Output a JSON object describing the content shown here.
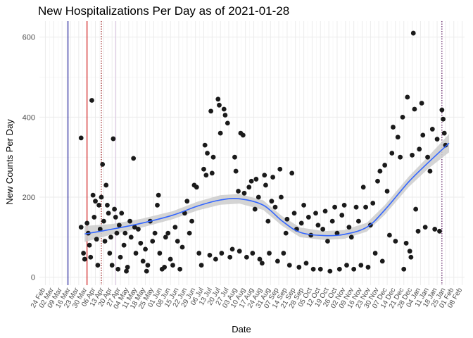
{
  "chart_data": {
    "type": "scatter",
    "title": "New Hospitalizations Per Day as of 2021-01-28",
    "xlabel": "Date",
    "ylabel": "New Counts Per Day",
    "ylim": [
      -20,
      640
    ],
    "yticks": [
      0,
      200,
      400,
      600
    ],
    "xlim": [
      "2020-02-19",
      "2021-02-10"
    ],
    "xticks": [
      "24 Feb",
      "02 Mar",
      "09 Mar",
      "16 Mar",
      "23 Mar",
      "30 Mar",
      "06 Apr",
      "13 Apr",
      "20 Apr",
      "27 Apr",
      "04 May",
      "11 May",
      "18 May",
      "25 May",
      "01 Jun",
      "08 Jun",
      "15 Jun",
      "22 Jun",
      "29 Jun",
      "06 Jul",
      "13 Jul",
      "20 Jul",
      "27 Jul",
      "03 Aug",
      "10 Aug",
      "17 Aug",
      "24 Aug",
      "31 Aug",
      "07 Sep",
      "14 Sep",
      "21 Sep",
      "28 Sep",
      "05 Oct",
      "12 Oct",
      "19 Oct",
      "26 Oct",
      "02 Nov",
      "09 Nov",
      "16 Nov",
      "23 Nov",
      "30 Nov",
      "07 Dec",
      "14 Dec",
      "21 Dec",
      "28 Dec",
      "04 Jan",
      "11 Jan",
      "18 Jan",
      "25 Jan",
      "01 Feb",
      "08 Feb"
    ],
    "grid": true,
    "point_color": "#1a1a1a",
    "smooth_color": "#3366ff",
    "ribbon_color": "#cccccc",
    "vlines": [
      {
        "date": "2020-03-14",
        "color": "#00008b",
        "style": "solid"
      },
      {
        "date": "2020-03-30",
        "color": "#cc0000",
        "style": "solid"
      },
      {
        "date": "2020-04-11",
        "color": "#8b0000",
        "style": "dotted"
      },
      {
        "date": "2020-04-23",
        "color": "#d8c4e0",
        "style": "solid"
      },
      {
        "date": "2021-01-22",
        "color": "#4b0050",
        "style": "dotted"
      }
    ],
    "smooth": [
      {
        "x": "2020-03-28",
        "y": 108,
        "lo": 88,
        "hi": 128
      },
      {
        "x": "2020-04-20",
        "y": 120,
        "lo": 107,
        "hi": 133
      },
      {
        "x": "2020-05-15",
        "y": 135,
        "lo": 124,
        "hi": 146
      },
      {
        "x": "2020-06-10",
        "y": 155,
        "lo": 145,
        "hi": 165
      },
      {
        "x": "2020-07-01",
        "y": 178,
        "lo": 167,
        "hi": 189
      },
      {
        "x": "2020-07-20",
        "y": 193,
        "lo": 181,
        "hi": 205
      },
      {
        "x": "2020-08-05",
        "y": 196,
        "lo": 184,
        "hi": 208
      },
      {
        "x": "2020-08-25",
        "y": 180,
        "lo": 168,
        "hi": 192
      },
      {
        "x": "2020-09-10",
        "y": 140,
        "lo": 128,
        "hi": 152
      },
      {
        "x": "2020-09-25",
        "y": 112,
        "lo": 100,
        "hi": 124
      },
      {
        "x": "2020-10-15",
        "y": 104,
        "lo": 93,
        "hi": 115
      },
      {
        "x": "2020-11-01",
        "y": 107,
        "lo": 96,
        "hi": 118
      },
      {
        "x": "2020-11-20",
        "y": 125,
        "lo": 114,
        "hi": 136
      },
      {
        "x": "2020-12-05",
        "y": 168,
        "lo": 156,
        "hi": 180
      },
      {
        "x": "2020-12-25",
        "y": 238,
        "lo": 225,
        "hi": 251
      },
      {
        "x": "2021-01-10",
        "y": 285,
        "lo": 270,
        "hi": 300
      },
      {
        "x": "2021-01-28",
        "y": 335,
        "lo": 312,
        "hi": 358
      }
    ],
    "points": [
      {
        "x": "2020-03-25",
        "y": 348
      },
      {
        "x": "2020-03-25",
        "y": 125
      },
      {
        "x": "2020-03-27",
        "y": 60
      },
      {
        "x": "2020-03-28",
        "y": 45
      },
      {
        "x": "2020-03-30",
        "y": 135
      },
      {
        "x": "2020-03-31",
        "y": 110
      },
      {
        "x": "2020-04-01",
        "y": 80
      },
      {
        "x": "2020-04-02",
        "y": 50
      },
      {
        "x": "2020-04-03",
        "y": 442
      },
      {
        "x": "2020-04-04",
        "y": 205
      },
      {
        "x": "2020-04-05",
        "y": 150
      },
      {
        "x": "2020-04-06",
        "y": 190
      },
      {
        "x": "2020-04-07",
        "y": 95
      },
      {
        "x": "2020-04-08",
        "y": 30
      },
      {
        "x": "2020-04-09",
        "y": 180
      },
      {
        "x": "2020-04-10",
        "y": 120
      },
      {
        "x": "2020-04-11",
        "y": 200
      },
      {
        "x": "2020-04-12",
        "y": 282
      },
      {
        "x": "2020-04-13",
        "y": 140
      },
      {
        "x": "2020-04-14",
        "y": 90
      },
      {
        "x": "2020-04-15",
        "y": 230
      },
      {
        "x": "2020-04-16",
        "y": 180
      },
      {
        "x": "2020-04-17",
        "y": 160
      },
      {
        "x": "2020-04-18",
        "y": 60
      },
      {
        "x": "2020-04-19",
        "y": 100
      },
      {
        "x": "2020-04-20",
        "y": 30
      },
      {
        "x": "2020-04-21",
        "y": 346
      },
      {
        "x": "2020-04-22",
        "y": 170
      },
      {
        "x": "2020-04-23",
        "y": 150
      },
      {
        "x": "2020-04-24",
        "y": 110
      },
      {
        "x": "2020-04-25",
        "y": 20
      },
      {
        "x": "2020-04-26",
        "y": 130
      },
      {
        "x": "2020-04-27",
        "y": 50
      },
      {
        "x": "2020-04-28",
        "y": 160
      },
      {
        "x": "2020-04-30",
        "y": 80
      },
      {
        "x": "2020-05-01",
        "y": 110
      },
      {
        "x": "2020-05-02",
        "y": 15
      },
      {
        "x": "2020-05-03",
        "y": 25
      },
      {
        "x": "2020-05-05",
        "y": 140
      },
      {
        "x": "2020-05-06",
        "y": 100
      },
      {
        "x": "2020-05-08",
        "y": 297
      },
      {
        "x": "2020-05-09",
        "y": 125
      },
      {
        "x": "2020-05-10",
        "y": 60
      },
      {
        "x": "2020-05-12",
        "y": 120
      },
      {
        "x": "2020-05-14",
        "y": 85
      },
      {
        "x": "2020-05-16",
        "y": 40
      },
      {
        "x": "2020-05-18",
        "y": 70
      },
      {
        "x": "2020-05-19",
        "y": 15
      },
      {
        "x": "2020-05-20",
        "y": 30
      },
      {
        "x": "2020-05-22",
        "y": 140
      },
      {
        "x": "2020-05-24",
        "y": 90
      },
      {
        "x": "2020-05-26",
        "y": 110
      },
      {
        "x": "2020-05-28",
        "y": 180
      },
      {
        "x": "2020-05-29",
        "y": 205
      },
      {
        "x": "2020-05-30",
        "y": 60
      },
      {
        "x": "2020-06-01",
        "y": 20
      },
      {
        "x": "2020-06-03",
        "y": 25
      },
      {
        "x": "2020-06-04",
        "y": 100
      },
      {
        "x": "2020-06-06",
        "y": 110
      },
      {
        "x": "2020-06-08",
        "y": 45
      },
      {
        "x": "2020-06-10",
        "y": 30
      },
      {
        "x": "2020-06-12",
        "y": 125
      },
      {
        "x": "2020-06-14",
        "y": 90
      },
      {
        "x": "2020-06-16",
        "y": 20
      },
      {
        "x": "2020-06-18",
        "y": 75
      },
      {
        "x": "2020-06-20",
        "y": 160
      },
      {
        "x": "2020-06-22",
        "y": 190
      },
      {
        "x": "2020-06-24",
        "y": 110
      },
      {
        "x": "2020-06-26",
        "y": 140
      },
      {
        "x": "2020-06-28",
        "y": 230
      },
      {
        "x": "2020-06-30",
        "y": 225
      },
      {
        "x": "2020-07-02",
        "y": 60
      },
      {
        "x": "2020-07-04",
        "y": 30
      },
      {
        "x": "2020-07-06",
        "y": 270
      },
      {
        "x": "2020-07-07",
        "y": 330
      },
      {
        "x": "2020-07-08",
        "y": 255
      },
      {
        "x": "2020-07-09",
        "y": 310
      },
      {
        "x": "2020-07-11",
        "y": 55
      },
      {
        "x": "2020-07-12",
        "y": 415
      },
      {
        "x": "2020-07-13",
        "y": 260
      },
      {
        "x": "2020-07-14",
        "y": 300
      },
      {
        "x": "2020-07-16",
        "y": 45
      },
      {
        "x": "2020-07-18",
        "y": 445
      },
      {
        "x": "2020-07-19",
        "y": 430
      },
      {
        "x": "2020-07-20",
        "y": 360
      },
      {
        "x": "2020-07-21",
        "y": 60
      },
      {
        "x": "2020-07-23",
        "y": 420
      },
      {
        "x": "2020-07-24",
        "y": 405
      },
      {
        "x": "2020-07-26",
        "y": 385
      },
      {
        "x": "2020-07-28",
        "y": 50
      },
      {
        "x": "2020-07-30",
        "y": 70
      },
      {
        "x": "2020-08-01",
        "y": 300
      },
      {
        "x": "2020-08-02",
        "y": 265
      },
      {
        "x": "2020-08-04",
        "y": 215
      },
      {
        "x": "2020-08-05",
        "y": 65
      },
      {
        "x": "2020-08-06",
        "y": 360
      },
      {
        "x": "2020-08-08",
        "y": 355
      },
      {
        "x": "2020-08-09",
        "y": 210
      },
      {
        "x": "2020-08-11",
        "y": 50
      },
      {
        "x": "2020-08-13",
        "y": 225
      },
      {
        "x": "2020-08-15",
        "y": 240
      },
      {
        "x": "2020-08-16",
        "y": 60
      },
      {
        "x": "2020-08-18",
        "y": 170
      },
      {
        "x": "2020-08-19",
        "y": 245
      },
      {
        "x": "2020-08-21",
        "y": 200
      },
      {
        "x": "2020-08-22",
        "y": 45
      },
      {
        "x": "2020-08-24",
        "y": 35
      },
      {
        "x": "2020-08-26",
        "y": 255
      },
      {
        "x": "2020-08-27",
        "y": 230
      },
      {
        "x": "2020-08-29",
        "y": 140
      },
      {
        "x": "2020-08-30",
        "y": 60
      },
      {
        "x": "2020-09-01",
        "y": 190
      },
      {
        "x": "2020-09-02",
        "y": 250
      },
      {
        "x": "2020-09-04",
        "y": 175
      },
      {
        "x": "2020-09-06",
        "y": 40
      },
      {
        "x": "2020-09-08",
        "y": 270
      },
      {
        "x": "2020-09-09",
        "y": 200
      },
      {
        "x": "2020-09-11",
        "y": 60
      },
      {
        "x": "2020-09-13",
        "y": 110
      },
      {
        "x": "2020-09-14",
        "y": 145
      },
      {
        "x": "2020-09-16",
        "y": 30
      },
      {
        "x": "2020-09-18",
        "y": 260
      },
      {
        "x": "2020-09-20",
        "y": 160
      },
      {
        "x": "2020-09-22",
        "y": 120
      },
      {
        "x": "2020-09-24",
        "y": 25
      },
      {
        "x": "2020-09-26",
        "y": 135
      },
      {
        "x": "2020-09-28",
        "y": 180
      },
      {
        "x": "2020-09-30",
        "y": 35
      },
      {
        "x": "2020-10-02",
        "y": 150
      },
      {
        "x": "2020-10-04",
        "y": 105
      },
      {
        "x": "2020-10-06",
        "y": 20
      },
      {
        "x": "2020-10-08",
        "y": 160
      },
      {
        "x": "2020-10-10",
        "y": 130
      },
      {
        "x": "2020-10-12",
        "y": 20
      },
      {
        "x": "2020-10-14",
        "y": 120
      },
      {
        "x": "2020-10-16",
        "y": 165
      },
      {
        "x": "2020-10-18",
        "y": 90
      },
      {
        "x": "2020-10-20",
        "y": 15
      },
      {
        "x": "2020-10-22",
        "y": 140
      },
      {
        "x": "2020-10-24",
        "y": 175
      },
      {
        "x": "2020-10-26",
        "y": 110
      },
      {
        "x": "2020-10-28",
        "y": 20
      },
      {
        "x": "2020-10-30",
        "y": 155
      },
      {
        "x": "2020-11-01",
        "y": 180
      },
      {
        "x": "2020-11-03",
        "y": 30
      },
      {
        "x": "2020-11-05",
        "y": 125
      },
      {
        "x": "2020-11-07",
        "y": 100
      },
      {
        "x": "2020-11-09",
        "y": 20
      },
      {
        "x": "2020-11-11",
        "y": 175
      },
      {
        "x": "2020-11-13",
        "y": 140
      },
      {
        "x": "2020-11-15",
        "y": 30
      },
      {
        "x": "2020-11-17",
        "y": 225
      },
      {
        "x": "2020-11-19",
        "y": 175
      },
      {
        "x": "2020-11-21",
        "y": 25
      },
      {
        "x": "2020-11-23",
        "y": 130
      },
      {
        "x": "2020-11-25",
        "y": 185
      },
      {
        "x": "2020-11-27",
        "y": 60
      },
      {
        "x": "2020-11-29",
        "y": 240
      },
      {
        "x": "2020-12-01",
        "y": 265
      },
      {
        "x": "2020-12-03",
        "y": 40
      },
      {
        "x": "2020-12-05",
        "y": 280
      },
      {
        "x": "2020-12-07",
        "y": 215
      },
      {
        "x": "2020-12-09",
        "y": 105
      },
      {
        "x": "2020-12-11",
        "y": 310
      },
      {
        "x": "2020-12-12",
        "y": 375
      },
      {
        "x": "2020-12-14",
        "y": 90
      },
      {
        "x": "2020-12-16",
        "y": 350
      },
      {
        "x": "2020-12-18",
        "y": 300
      },
      {
        "x": "2020-12-20",
        "y": 400
      },
      {
        "x": "2020-12-21",
        "y": 20
      },
      {
        "x": "2020-12-23",
        "y": 85
      },
      {
        "x": "2020-12-24",
        "y": 450
      },
      {
        "x": "2020-12-26",
        "y": 65
      },
      {
        "x": "2020-12-27",
        "y": 50
      },
      {
        "x": "2020-12-28",
        "y": 305
      },
      {
        "x": "2020-12-29",
        "y": 610
      },
      {
        "x": "2020-12-30",
        "y": 420
      },
      {
        "x": "2020-12-31",
        "y": 170
      },
      {
        "x": "2021-01-02",
        "y": 115
      },
      {
        "x": "2021-01-03",
        "y": 320
      },
      {
        "x": "2021-01-05",
        "y": 435
      },
      {
        "x": "2021-01-06",
        "y": 355
      },
      {
        "x": "2021-01-08",
        "y": 125
      },
      {
        "x": "2021-01-10",
        "y": 300
      },
      {
        "x": "2021-01-12",
        "y": 265
      },
      {
        "x": "2021-01-14",
        "y": 370
      },
      {
        "x": "2021-01-16",
        "y": 120
      },
      {
        "x": "2021-01-18",
        "y": 345
      },
      {
        "x": "2021-01-20",
        "y": 115
      },
      {
        "x": "2021-01-22",
        "y": 418
      },
      {
        "x": "2021-01-23",
        "y": 395
      },
      {
        "x": "2021-01-24",
        "y": 360
      },
      {
        "x": "2021-01-25",
        "y": 330
      }
    ]
  }
}
